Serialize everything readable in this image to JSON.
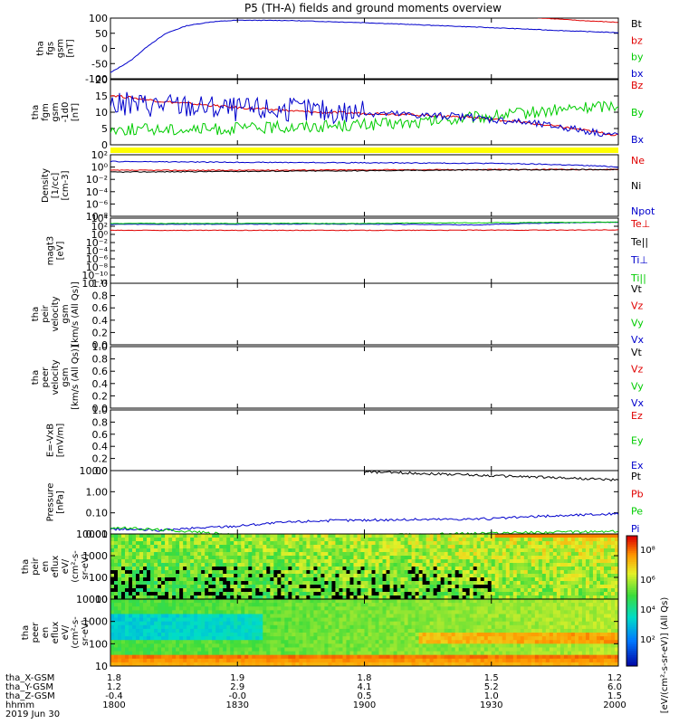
{
  "title": "P5 (TH-A) fields and ground moments overview",
  "colors": {
    "black": "#000000",
    "red": "#e00000",
    "green": "#00cc00",
    "blue": "#0000cc",
    "yellow": "#ffff00"
  },
  "panels": [
    {
      "id": "fgs",
      "ylabel": [
        "tha",
        "fgs",
        "gsm",
        "[nT]"
      ],
      "yticks": [
        "100",
        "50",
        "0",
        "-50",
        "-100"
      ],
      "legend": [
        {
          "text": "Bt",
          "color": "black"
        },
        {
          "text": "bz",
          "color": "red"
        },
        {
          "text": "by",
          "color": "green"
        },
        {
          "text": "bx",
          "color": "blue"
        }
      ]
    },
    {
      "id": "fgm",
      "ylabel": [
        "tha",
        "fgm",
        "gsm",
        "-1d0",
        "[nT]"
      ],
      "yticks": [
        "20",
        "15",
        "10",
        "5",
        "0"
      ],
      "legend": [
        {
          "text": "Bz",
          "color": "red"
        },
        {
          "text": "By",
          "color": "green"
        },
        {
          "text": "Bx",
          "color": "blue"
        }
      ]
    },
    {
      "id": "density",
      "ylabel": [
        "Density",
        "[1/cc]",
        "[cm-3]"
      ],
      "yticks": [
        "10²",
        "10⁰",
        "10⁻²",
        "10⁻⁴",
        "10⁻⁶",
        "10⁻⁸"
      ],
      "legend": [
        {
          "text": "Ne",
          "color": "red"
        },
        {
          "text": "Ni",
          "color": "black"
        },
        {
          "text": "Npot",
          "color": "blue"
        }
      ]
    },
    {
      "id": "temperature",
      "ylabel": [
        "magt3",
        "[eV]"
      ],
      "yticks": [
        "10⁴",
        "10²",
        "10⁰",
        "10⁻²",
        "10⁻⁴",
        "10⁻⁶",
        "10⁻⁸",
        "10⁻¹⁰",
        "10⁻¹²"
      ],
      "legend": [
        {
          "text": "Te⊥",
          "color": "red"
        },
        {
          "text": "Te||",
          "color": "black"
        },
        {
          "text": "Ti⊥",
          "color": "blue"
        },
        {
          "text": "Ti||",
          "color": "green"
        }
      ]
    },
    {
      "id": "peir_velocity",
      "ylabel": [
        "tha",
        "peir",
        "velocity",
        "gsm",
        "[km/s (All Qs)]"
      ],
      "yticks": [
        "1.0",
        "0.8",
        "0.6",
        "0.4",
        "0.2",
        "0.0"
      ],
      "legend": [
        {
          "text": "Vt",
          "color": "black"
        },
        {
          "text": "Vz",
          "color": "red"
        },
        {
          "text": "Vy",
          "color": "green"
        },
        {
          "text": "Vx",
          "color": "blue"
        }
      ]
    },
    {
      "id": "peer_velocity",
      "ylabel": [
        "tha",
        "peer",
        "velocity",
        "gsm",
        "[km/s (All Qs)]"
      ],
      "yticks": [
        "1.0",
        "0.8",
        "0.6",
        "0.4",
        "0.2",
        "0.0"
      ],
      "legend": [
        {
          "text": "Vt",
          "color": "black"
        },
        {
          "text": "Vz",
          "color": "red"
        },
        {
          "text": "Vy",
          "color": "green"
        },
        {
          "text": "Vx",
          "color": "blue"
        }
      ]
    },
    {
      "id": "efield",
      "ylabel": [
        "E=-VxB",
        "[mV/m]"
      ],
      "yticks": [
        "1.0",
        "0.8",
        "0.6",
        "0.4",
        "0.2",
        "0.0"
      ],
      "legend": [
        {
          "text": "Ez",
          "color": "red"
        },
        {
          "text": "Ey",
          "color": "green"
        },
        {
          "text": "Ex",
          "color": "blue"
        }
      ]
    },
    {
      "id": "pressure",
      "ylabel": [
        "Pressure",
        "[nPa]"
      ],
      "yticks": [
        "10.00",
        "1.00",
        "0.10",
        "0.01"
      ],
      "legend": [
        {
          "text": "Pt",
          "color": "black"
        },
        {
          "text": "Pb",
          "color": "red"
        },
        {
          "text": "Pe",
          "color": "green"
        },
        {
          "text": "Pi",
          "color": "blue"
        }
      ]
    },
    {
      "id": "peir_eflux",
      "ylabel": [
        "tha",
        "peir",
        "en",
        "eflux",
        "eV/",
        "(cm²-s-",
        "sr-eV)"
      ],
      "yticks": [
        "10000",
        "1000",
        "100",
        "10"
      ]
    },
    {
      "id": "peer_eflux",
      "ylabel": [
        "tha",
        "peer",
        "en",
        "eflux",
        "eV/",
        "(cm²-s-",
        "sr-eV)"
      ],
      "yticks": [
        "10000",
        "1000",
        "100",
        "10"
      ]
    }
  ],
  "colorbar_ticks": [
    "10⁸",
    "10⁶",
    "10⁴",
    "10²"
  ],
  "colorbar_label": "[eV/(cm²-s-sr-eV)] (All Qs)",
  "x_labels_rows": [
    {
      "name": "tha_X-GSM",
      "values": [
        "1.8",
        "1.9",
        "1.8",
        "1.5",
        "1.2"
      ]
    },
    {
      "name": "tha_Y-GSM",
      "values": [
        "1.2",
        "2.9",
        "4.1",
        "5.2",
        "6.0"
      ]
    },
    {
      "name": "tha_Z-GSM",
      "values": [
        "-0.4",
        "-0.0",
        "0.5",
        "1.0",
        "1.5"
      ]
    },
    {
      "name": "hhmm",
      "values": [
        "1800",
        "1830",
        "1900",
        "1930",
        "2000"
      ]
    }
  ],
  "date": "2019 Jun 30",
  "chart_data": [
    {
      "type": "line",
      "panel": "fgs",
      "ylim": [
        -100,
        100
      ],
      "xlim": [
        1800,
        2000
      ],
      "series": [
        {
          "name": "Bt",
          "color": "black",
          "x": [
            1800,
            2000
          ],
          "y": [
            null,
            null
          ]
        },
        {
          "name": "bz",
          "color": "red",
          "x": [
            1955,
            1970,
            1985,
            2000
          ],
          "y": [
            112,
            100,
            92,
            86
          ]
        },
        {
          "name": "bx",
          "color": "blue",
          "x": [
            1800,
            1808,
            1815,
            1822,
            1830,
            1840,
            1850,
            1870,
            1900,
            1930,
            1960,
            1980,
            2000
          ],
          "y": [
            -80,
            -40,
            10,
            50,
            75,
            88,
            93,
            92,
            85,
            75,
            65,
            58,
            52
          ]
        }
      ]
    },
    {
      "type": "line",
      "panel": "fgm",
      "ylim": [
        -1,
        20
      ],
      "xlim": [
        1800,
        2000
      ],
      "series": [
        {
          "name": "Bz",
          "color": "red",
          "x": [
            1800,
            1820,
            1850,
            1880,
            1910,
            1940,
            1960,
            1980,
            2000
          ],
          "y": [
            15,
            13,
            11,
            9.5,
            9,
            8,
            6.5,
            4.5,
            2
          ]
        },
        {
          "name": "By",
          "color": "green",
          "x": [
            1800,
            1840,
            1880,
            1920,
            1940,
            1960,
            1980,
            2000
          ],
          "y": [
            4,
            4,
            5,
            6,
            7.5,
            9,
            10.5,
            12
          ]
        },
        {
          "name": "Bx",
          "color": "blue",
          "x": [
            1800,
            1820,
            1850,
            1880,
            1910,
            1940,
            1960,
            1980,
            2000
          ],
          "y": [
            12,
            12,
            10.5,
            10,
            9,
            8,
            6.5,
            4.5,
            2
          ]
        }
      ]
    },
    {
      "type": "line",
      "panel": "density",
      "ylog": true,
      "ylim": [
        1e-08,
        100.0
      ],
      "xlim": [
        1800,
        2000
      ],
      "series": [
        {
          "name": "Ne",
          "color": "red",
          "x": [
            1800,
            1850,
            1900,
            1950,
            2000
          ],
          "y": [
            0.3,
            0.3,
            0.35,
            0.4,
            0.4
          ]
        },
        {
          "name": "Ni",
          "color": "black",
          "x": [
            1800,
            1850,
            1900,
            1950,
            2000
          ],
          "y": [
            0.15,
            0.2,
            0.25,
            0.35,
            0.4
          ]
        },
        {
          "name": "Npot",
          "color": "blue",
          "x": [
            1800,
            1850,
            1900,
            1950,
            2000
          ],
          "y": [
            8,
            6,
            5,
            4,
            1
          ]
        }
      ]
    },
    {
      "type": "line",
      "panel": "temperature",
      "ylog": true,
      "ylim": [
        1e-12,
        10000.0
      ],
      "xlim": [
        1800,
        2000
      ],
      "series": [
        {
          "name": "Te⊥",
          "color": "red",
          "x": [
            1800,
            1900,
            2000
          ],
          "y": [
            10,
            10,
            12
          ]
        },
        {
          "name": "Ti⊥",
          "color": "blue",
          "x": [
            1800,
            1900,
            1945,
            2000
          ],
          "y": [
            300,
            350,
            200,
            1000
          ]
        },
        {
          "name": "Ti||",
          "color": "green",
          "x": [
            1800,
            1900,
            2000
          ],
          "y": [
            500,
            500,
            1000
          ]
        }
      ]
    },
    {
      "type": "line",
      "panel": "pressure",
      "ylog": true,
      "ylim": [
        0.005,
        30
      ],
      "xlim": [
        1800,
        2000
      ],
      "series": [
        {
          "name": "Pt",
          "color": "black",
          "x": [
            1900,
            1950,
            2000
          ],
          "y": [
            25,
            15,
            8
          ]
        },
        {
          "name": "Pi",
          "color": "blue",
          "x": [
            1800,
            1820,
            1850,
            1880,
            1910,
            1950,
            2000
          ],
          "y": [
            0.01,
            0.008,
            0.015,
            0.03,
            0.035,
            0.04,
            0.08
          ]
        },
        {
          "name": "Pe",
          "color": "green",
          "x": [
            1800,
            1850,
            1900,
            1930,
            1960,
            2000
          ],
          "y": [
            0.012,
            0.004,
            0.004,
            0.005,
            0.006,
            0.007
          ]
        }
      ]
    },
    {
      "type": "heatmap",
      "panel": "peir_eflux",
      "ylog": true,
      "ylim": [
        7,
        20000
      ],
      "xlim": [
        1800,
        2000
      ],
      "zlog": true,
      "zlim": [
        10,
        100000000.0
      ]
    },
    {
      "type": "heatmap",
      "panel": "peer_eflux",
      "ylog": true,
      "ylim": [
        7,
        20000
      ],
      "xlim": [
        1800,
        2000
      ],
      "zlog": true,
      "zlim": [
        10,
        100000000.0
      ]
    }
  ]
}
